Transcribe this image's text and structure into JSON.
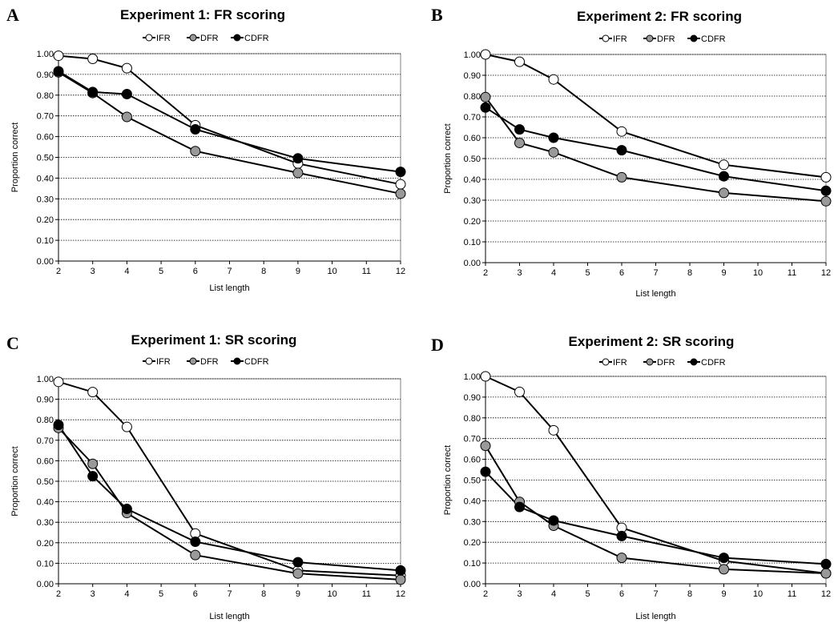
{
  "colors": {
    "IFR": "#ffffff",
    "DFR": "#999999",
    "CDFR": "#000000",
    "line": "#000000",
    "grid": "#000000"
  },
  "chart_data": [
    {
      "type": "line",
      "panel": "A",
      "title": "Experiment 1: FR scoring",
      "xlabel": "List length",
      "ylabel": "Proportion correct",
      "xlim": [
        2,
        12
      ],
      "ylim": [
        0,
        1
      ],
      "x_ticks": [
        "2",
        "3",
        "4",
        "5",
        "6",
        "7",
        "8",
        "9",
        "10",
        "11",
        "12"
      ],
      "y_ticks": [
        "0.00",
        "0.10",
        "0.20",
        "0.30",
        "0.40",
        "0.50",
        "0.60",
        "0.70",
        "0.80",
        "0.90",
        "1.00"
      ],
      "grid": true,
      "legend_position": "top",
      "x": [
        2,
        3,
        4,
        6,
        9,
        12
      ],
      "series": [
        {
          "name": "IFR",
          "values": [
            0.99,
            0.975,
            0.93,
            0.655,
            0.47,
            0.37
          ]
        },
        {
          "name": "DFR",
          "values": [
            0.91,
            0.81,
            0.695,
            0.53,
            0.425,
            0.325
          ]
        },
        {
          "name": "CDFR",
          "values": [
            0.915,
            0.815,
            0.805,
            0.635,
            0.495,
            0.43
          ]
        }
      ]
    },
    {
      "type": "line",
      "panel": "B",
      "title": "Experiment 2: FR scoring",
      "xlabel": "List length",
      "ylabel": "Proportion correct",
      "xlim": [
        2,
        12
      ],
      "ylim": [
        0,
        1
      ],
      "x_ticks": [
        "2",
        "3",
        "4",
        "5",
        "6",
        "7",
        "8",
        "9",
        "10",
        "11",
        "12"
      ],
      "y_ticks": [
        "0.00",
        "0.10",
        "0.20",
        "0.30",
        "0.40",
        "0.50",
        "0.60",
        "0.70",
        "0.80",
        "0.90",
        "1.00"
      ],
      "grid": true,
      "legend_position": "top",
      "x": [
        2,
        3,
        4,
        6,
        9,
        12
      ],
      "series": [
        {
          "name": "IFR",
          "values": [
            1.0,
            0.965,
            0.88,
            0.63,
            0.47,
            0.41
          ]
        },
        {
          "name": "DFR",
          "values": [
            0.795,
            0.575,
            0.53,
            0.41,
            0.335,
            0.295
          ]
        },
        {
          "name": "CDFR",
          "values": [
            0.745,
            0.64,
            0.6,
            0.54,
            0.415,
            0.345
          ]
        }
      ]
    },
    {
      "type": "line",
      "panel": "C",
      "title": "Experiment 1: SR scoring",
      "xlabel": "List length",
      "ylabel": "Proportion correct",
      "xlim": [
        2,
        12
      ],
      "ylim": [
        0,
        1
      ],
      "x_ticks": [
        "2",
        "3",
        "4",
        "5",
        "6",
        "7",
        "8",
        "9",
        "10",
        "11",
        "12"
      ],
      "y_ticks": [
        "0.00",
        "0.10",
        "0.20",
        "0.30",
        "0.40",
        "0.50",
        "0.60",
        "0.70",
        "0.80",
        "0.90",
        "1.00"
      ],
      "grid": true,
      "legend_position": "top",
      "x": [
        2,
        3,
        4,
        6,
        9,
        12
      ],
      "series": [
        {
          "name": "IFR",
          "values": [
            0.985,
            0.935,
            0.765,
            0.245,
            0.065,
            0.04
          ]
        },
        {
          "name": "DFR",
          "values": [
            0.76,
            0.585,
            0.345,
            0.14,
            0.05,
            0.02
          ]
        },
        {
          "name": "CDFR",
          "values": [
            0.775,
            0.525,
            0.365,
            0.205,
            0.105,
            0.065
          ]
        }
      ]
    },
    {
      "type": "line",
      "panel": "D",
      "title": "Experiment 2: SR scoring",
      "xlabel": "List length",
      "ylabel": "Proportion correct",
      "xlim": [
        2,
        12
      ],
      "ylim": [
        0,
        1
      ],
      "x_ticks": [
        "2",
        "3",
        "4",
        "5",
        "6",
        "7",
        "8",
        "9",
        "10",
        "11",
        "12"
      ],
      "y_ticks": [
        "0.00",
        "0.10",
        "0.20",
        "0.30",
        "0.40",
        "0.50",
        "0.60",
        "0.70",
        "0.80",
        "0.90",
        "1.00"
      ],
      "grid": true,
      "legend_position": "top",
      "x": [
        2,
        3,
        4,
        6,
        9,
        12
      ],
      "series": [
        {
          "name": "IFR",
          "values": [
            1.0,
            0.925,
            0.74,
            0.27,
            0.11,
            0.05
          ]
        },
        {
          "name": "DFR",
          "values": [
            0.665,
            0.395,
            0.28,
            0.125,
            0.07,
            0.05
          ]
        },
        {
          "name": "CDFR",
          "values": [
            0.54,
            0.37,
            0.305,
            0.23,
            0.125,
            0.095
          ]
        }
      ]
    }
  ]
}
